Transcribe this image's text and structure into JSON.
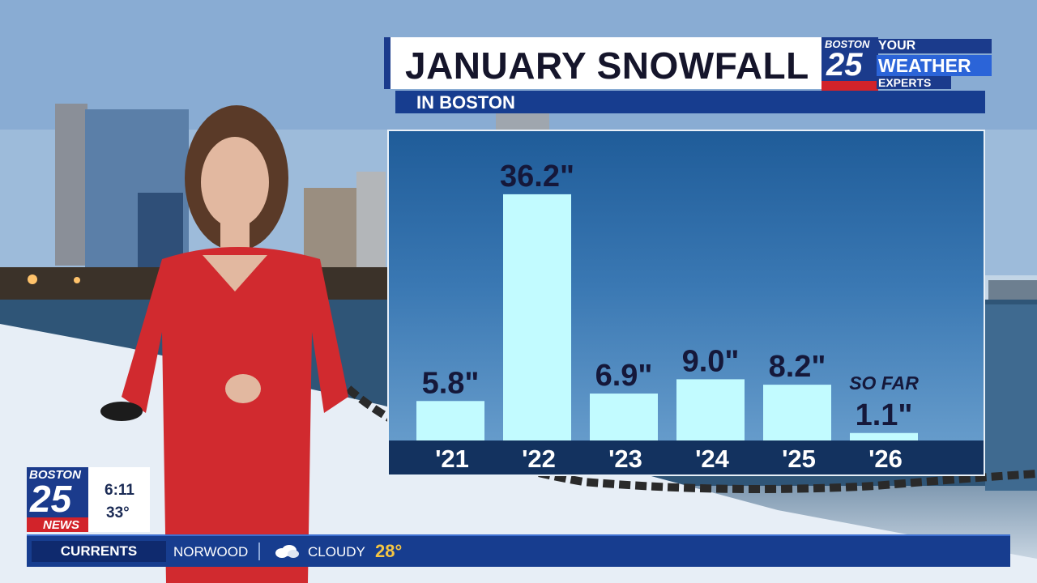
{
  "header": {
    "title": "JANUARY SNOWFALL",
    "subtitle": "IN BOSTON"
  },
  "logo": {
    "station_top": "BOSTON",
    "station_number": "25",
    "tagline_1": "YOUR",
    "tagline_2": "WEATHER",
    "tagline_3": "EXPERTS"
  },
  "chart_data": {
    "type": "bar",
    "title": "JANUARY SNOWFALL",
    "subtitle": "IN BOSTON",
    "categories": [
      "'21",
      "'22",
      "'23",
      "'24",
      "'25",
      "'26"
    ],
    "values": [
      5.8,
      36.2,
      6.9,
      9.0,
      8.2,
      1.1
    ],
    "value_labels": [
      "5.8\"",
      "36.2\"",
      "6.9\"",
      "9.0\"",
      "8.2\"",
      "1.1\""
    ],
    "annotations": [
      {
        "category": "'26",
        "text": "SO FAR"
      }
    ],
    "ylim": [
      0,
      40
    ],
    "grid": false,
    "legend": "none",
    "bar_color": "#c2fbff"
  },
  "bug": {
    "station_top": "BOSTON",
    "station_number": "25",
    "station_bottom": "NEWS",
    "time": "6:11",
    "temperature": "33°"
  },
  "ticker": {
    "label": "CURRENTS",
    "location": "NORWOOD",
    "condition_icon": "cloudy-icon",
    "condition": "CLOUDY",
    "temperature": "28°"
  },
  "colors": {
    "brand_blue": "#173d8f",
    "accent_red": "#d2232a",
    "temp_yellow": "#f5c542"
  }
}
